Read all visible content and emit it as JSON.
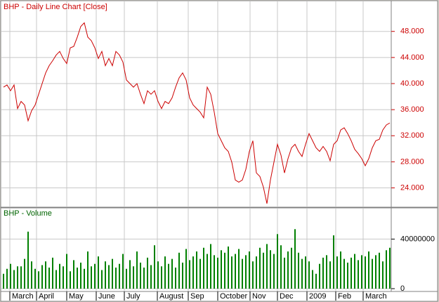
{
  "chart_data": [
    {
      "type": "line",
      "title": "BHP - Daily Line Chart [Close]",
      "color": "#cc0000",
      "grid": true,
      "ylim": [
        21.15,
        52.6
      ],
      "yticks": [
        {
          "value": 24,
          "label": "24.000"
        },
        {
          "value": 28,
          "label": "28.000"
        },
        {
          "value": 32,
          "label": "32.000"
        },
        {
          "value": 36,
          "label": "36.000"
        },
        {
          "value": 40,
          "label": "40.000"
        },
        {
          "value": 44,
          "label": "44.000"
        },
        {
          "value": 48,
          "label": "48.000"
        }
      ],
      "values": [
        39.45,
        39.78,
        38.9,
        39.78,
        36.16,
        37.26,
        36.71,
        34.3,
        35.84,
        36.71,
        38.36,
        40.0,
        41.64,
        42.74,
        43.51,
        44.38,
        44.93,
        43.84,
        43.07,
        45.48,
        45.7,
        47.12,
        48.77,
        49.32,
        47.12,
        46.58,
        45.48,
        43.84,
        44.93,
        42.74,
        43.84,
        42.74,
        44.93,
        44.38,
        43.29,
        40.55,
        40.0,
        39.45,
        40.0,
        38.36,
        36.93,
        38.9,
        38.36,
        38.9,
        37.26,
        36.16,
        37.26,
        36.93,
        37.81,
        39.45,
        40.88,
        41.64,
        40.55,
        37.81,
        36.71,
        36.16,
        35.62,
        34.74,
        39.45,
        38.36,
        35.62,
        32.33,
        31.23,
        30.14,
        29.59,
        27.95,
        25.21,
        24.88,
        25.21,
        26.85,
        29.59,
        31.23,
        26.3,
        25.75,
        24.11,
        21.59,
        25.21,
        27.95,
        30.68,
        29.04,
        26.3,
        28.49,
        30.14,
        30.68,
        29.59,
        28.82,
        30.68,
        32.33,
        31.23,
        30.14,
        29.59,
        30.36,
        29.59,
        28.16,
        30.68,
        31.23,
        32.88,
        33.21,
        32.33,
        31.23,
        29.92,
        29.26,
        28.49,
        27.4,
        28.49,
        30.14,
        31.23,
        31.45,
        32.88,
        33.64,
        33.97
      ]
    },
    {
      "type": "bar",
      "title": "BHP - Volume",
      "color": "#008000",
      "grid": true,
      "ylim": [
        0,
        64600000
      ],
      "yticks": [
        0,
        40000000
      ],
      "xlim": [
        0,
        110
      ],
      "xticks": [
        {
          "value": 1.8,
          "label": "March"
        },
        {
          "value": 9.4,
          "label": "April"
        },
        {
          "value": 18,
          "label": "May"
        },
        {
          "value": 26.4,
          "label": "June"
        },
        {
          "value": 34.4,
          "label": "July"
        },
        {
          "value": 43.8,
          "label": "August"
        },
        {
          "value": 52.6,
          "label": "Sep"
        },
        {
          "value": 61,
          "label": "October"
        },
        {
          "value": 70.2,
          "label": "Nov"
        },
        {
          "value": 78,
          "label": "Dec"
        },
        {
          "value": 86.4,
          "label": "2009"
        },
        {
          "value": 94.6,
          "label": "Feb"
        },
        {
          "value": 102.4,
          "label": "March"
        }
      ],
      "values": [
        12000000,
        16000000,
        20000000,
        15000000,
        18000000,
        18000000,
        24000000,
        46000000,
        22000000,
        16000000,
        14000000,
        19000000,
        22000000,
        17000000,
        25000000,
        15000000,
        20000000,
        18000000,
        28000000,
        14000000,
        23000000,
        17000000,
        21000000,
        16000000,
        30000000,
        18000000,
        20000000,
        26000000,
        15000000,
        22000000,
        19000000,
        24000000,
        17000000,
        20000000,
        28000000,
        16000000,
        23000000,
        18000000,
        30000000,
        21000000,
        17000000,
        25000000,
        19000000,
        35000000,
        22000000,
        18000000,
        26000000,
        20000000,
        24000000,
        17000000,
        29000000,
        21000000,
        32000000,
        23000000,
        26000000,
        30000000,
        24000000,
        33000000,
        28000000,
        36000000,
        27000000,
        25000000,
        31000000,
        29000000,
        34000000,
        26000000,
        28000000,
        32000000,
        24000000,
        27000000,
        30000000,
        22000000,
        26000000,
        33000000,
        29000000,
        36000000,
        31000000,
        28000000,
        44000000,
        35000000,
        25000000,
        30000000,
        33000000,
        48000000,
        29000000,
        24000000,
        26000000,
        22000000,
        15000000,
        12000000,
        20000000,
        25000000,
        27000000,
        22000000,
        43000000,
        26000000,
        30000000,
        24000000,
        21000000,
        25000000,
        28000000,
        23000000,
        27000000,
        26000000,
        30000000,
        24000000,
        27000000,
        29000000,
        22000000,
        31000000,
        33000000
      ]
    }
  ]
}
